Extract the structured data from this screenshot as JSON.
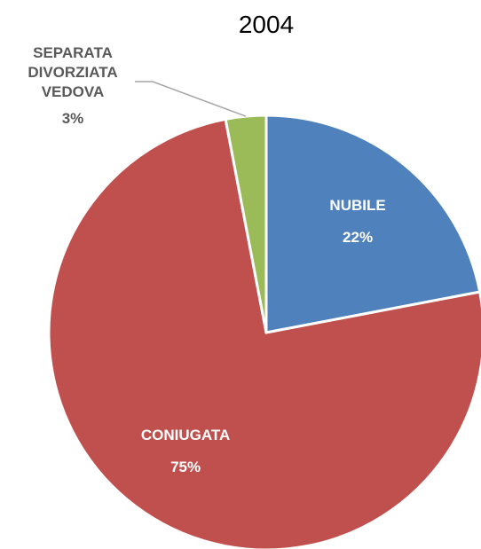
{
  "chart_data": {
    "type": "pie",
    "title": "2004",
    "categories": [
      "NUBILE",
      "CONIUGATA",
      "SEPARATA\nDIVORZIATA\nVEDOVA"
    ],
    "values": [
      22,
      75,
      3
    ],
    "value_labels": [
      "22%",
      "75%",
      "3%"
    ],
    "colors": [
      "#4f81bd",
      "#c0504d",
      "#9bbb59"
    ]
  }
}
